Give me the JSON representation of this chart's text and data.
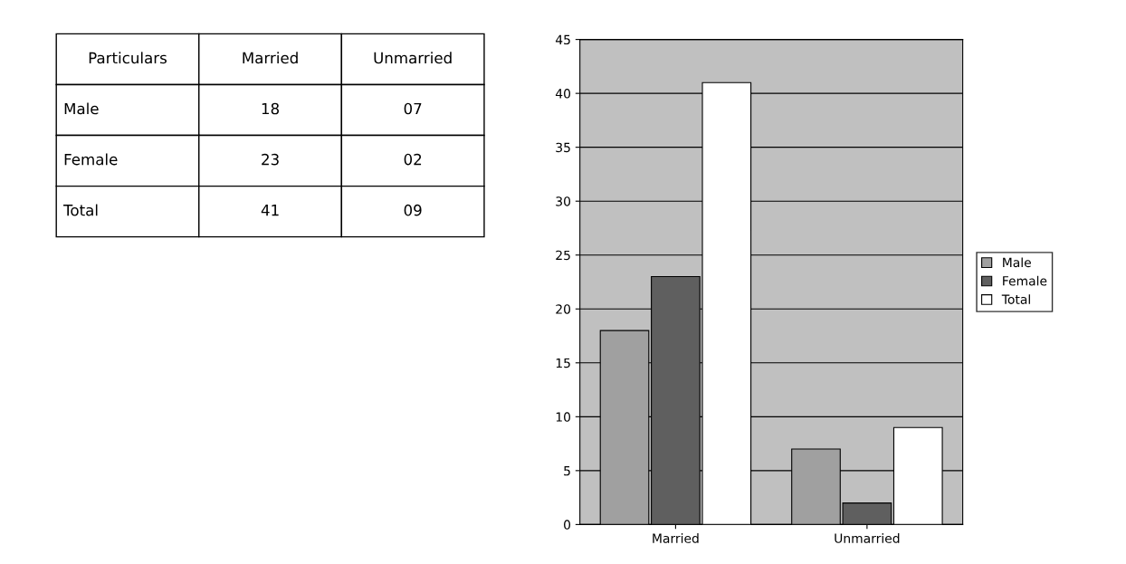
{
  "chart_data": {
    "type": "bar",
    "categories": [
      "Married",
      "Unmarried"
    ],
    "series": [
      {
        "name": "Male",
        "color": "#a0a0a0",
        "values": [
          18,
          7
        ]
      },
      {
        "name": "Female",
        "color": "#5f5f5f",
        "values": [
          23,
          2
        ]
      },
      {
        "name": "Total",
        "color": "#ffffff",
        "values": [
          41,
          9
        ]
      }
    ],
    "annotations": [
      "Particulars",
      "18",
      "07",
      "23",
      "02",
      "41",
      "09"
    ],
    "ylim": [
      0,
      45
    ],
    "yticks": [
      0,
      5,
      10,
      15,
      20,
      25,
      30,
      35,
      40,
      45
    ],
    "grid": "y",
    "legend": "right"
  }
}
